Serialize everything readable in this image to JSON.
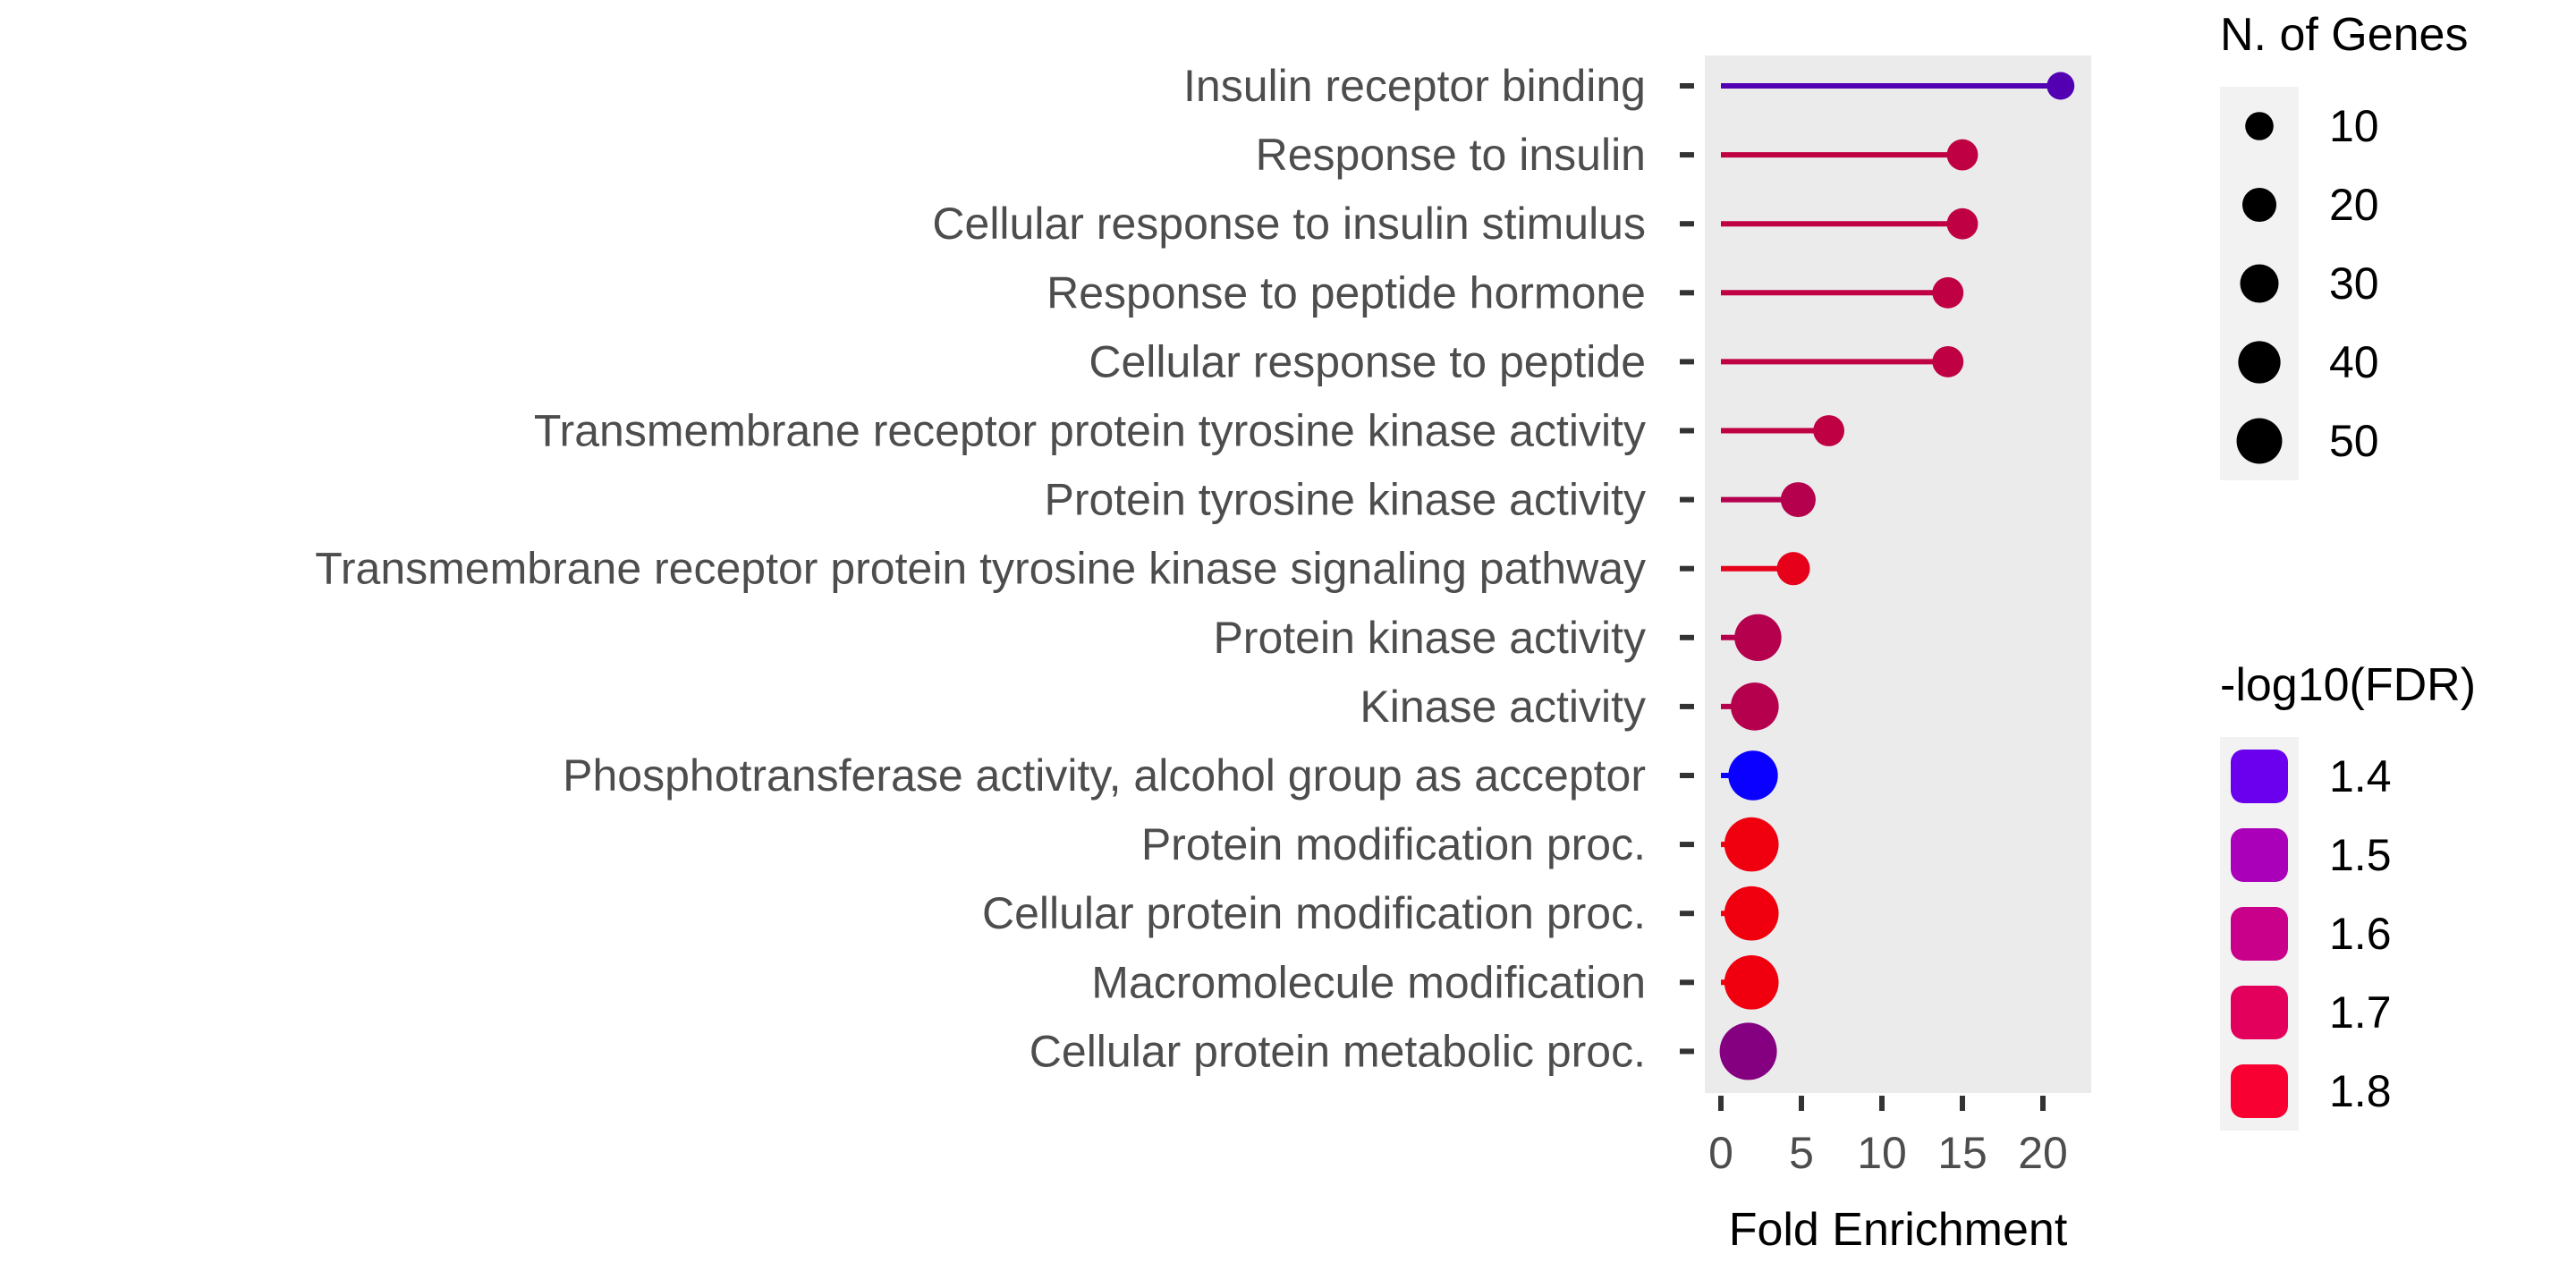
{
  "chart_data": {
    "type": "lollipop",
    "xlabel": "Fold Enrichment",
    "xlim": [
      -1,
      23
    ],
    "x_ticks": [
      0,
      5,
      10,
      15,
      20
    ],
    "categories": [
      "Insulin receptor binding",
      "Response to insulin",
      "Cellular response to insulin stimulus",
      "Response to peptide hormone",
      "Cellular response to peptide",
      "Transmembrane receptor protein tyrosine kinase activity",
      "Protein tyrosine kinase activity",
      "Transmembrane receptor protein tyrosine kinase signaling pathway",
      "Protein kinase activity",
      "Kinase activity",
      "Phosphotransferase activity, alcohol group as acceptor",
      "Protein modification proc.",
      "Cellular protein modification proc.",
      "Macromolecule modification",
      "Cellular protein metabolic proc."
    ],
    "fold_enrichment": [
      21.1,
      15.0,
      15.0,
      14.1,
      14.1,
      6.7,
      4.8,
      4.5,
      2.3,
      2.1,
      2.0,
      1.9,
      1.9,
      1.9,
      1.7
    ],
    "n_genes": [
      5,
      8,
      8,
      8,
      8,
      8,
      12,
      10,
      30,
      32,
      35,
      45,
      45,
      45,
      52
    ],
    "neg_log10_fdr": [
      1.5,
      1.72,
      1.72,
      1.72,
      1.72,
      1.72,
      1.7,
      1.8,
      1.7,
      1.7,
      1.35,
      1.82,
      1.82,
      1.82,
      1.6
    ],
    "size_legend": {
      "title": "N. of Genes",
      "values": [
        10,
        20,
        30,
        40,
        50
      ]
    },
    "color_legend": {
      "title": "-log10(FDR)",
      "values": [
        1.4,
        1.5,
        1.6,
        1.7,
        1.8
      ],
      "colors": [
        "#6A00EE",
        "#AA00B9",
        "#C9008A",
        "#E3005C",
        "#F90032"
      ]
    },
    "color_scale": {
      "min_value": 1.35,
      "max_value": 1.85,
      "low_color": "#0A00FF",
      "high_color": "#FF0000"
    },
    "panel_background": "#EBEBEB",
    "legend_background": "#F2F2F2"
  }
}
